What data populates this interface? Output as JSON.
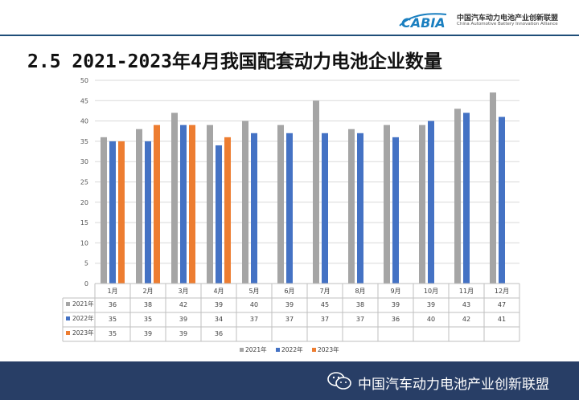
{
  "header": {
    "logo_text": "CABIA",
    "org_cn": "中国汽车动力电池产业创新联盟",
    "org_en": "China Automotive Battery Innovation Alliance"
  },
  "title": "2.5 2021-2023年4月我国配套动力电池企业数量",
  "footer": {
    "text": "中国汽车动力电池产业创新联盟",
    "icon": "wechat-icon"
  },
  "colors": {
    "s2021": "#a5a5a5",
    "s2022": "#4472c4",
    "s2023": "#ed7d31",
    "footer_bg": "#283e66"
  },
  "chart_data": {
    "type": "bar",
    "title": "2.5 2021-2023年4月我国配套动力电池企业数量",
    "categories": [
      "1月",
      "2月",
      "3月",
      "4月",
      "5月",
      "6月",
      "7月",
      "8月",
      "9月",
      "10月",
      "11月",
      "12月"
    ],
    "series": [
      {
        "name": "2021年",
        "values": [
          36,
          38,
          42,
          39,
          40,
          39,
          45,
          38,
          39,
          39,
          43,
          47
        ]
      },
      {
        "name": "2022年",
        "values": [
          35,
          35,
          39,
          34,
          37,
          37,
          37,
          37,
          36,
          40,
          42,
          41
        ]
      },
      {
        "name": "2023年",
        "values": [
          35,
          39,
          39,
          36,
          null,
          null,
          null,
          null,
          null,
          null,
          null,
          null
        ]
      }
    ],
    "ylim": [
      0,
      50
    ],
    "yticks": [
      0,
      5,
      10,
      15,
      20,
      25,
      30,
      35,
      40,
      45,
      50
    ],
    "xlabel": "",
    "ylabel": "",
    "grid": true,
    "data_table": true,
    "legend": "bottom"
  }
}
